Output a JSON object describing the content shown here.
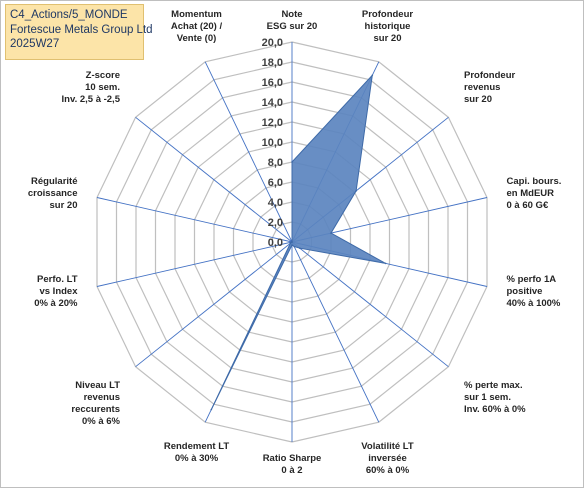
{
  "header": {
    "line1": "C4_Actions/5_MONDE",
    "line2": "Fortescue Metals Group Ltd",
    "line3": "2025W27"
  },
  "chart_data": {
    "type": "radar",
    "rmin": 0,
    "rmax": 20,
    "tick_step": 2,
    "ticks": [
      "0,0",
      "2,0",
      "4,0",
      "6,0",
      "8,0",
      "10,0",
      "12,0",
      "14,0",
      "16,0",
      "18,0",
      "20,0"
    ],
    "grid": true,
    "axis_labels": [
      [
        "Note",
        "ESG sur 20"
      ],
      [
        "Profondeur",
        "historique",
        "sur 20"
      ],
      [
        "Profondeur",
        "revenus",
        "sur 20"
      ],
      [
        "Capi. bours.",
        "en MdEUR",
        "0 à 60 G€"
      ],
      [
        "% perfo 1A",
        "positive",
        "40% à 100%"
      ],
      [
        "% perte max.",
        "sur 1 sem.",
        "Inv. 60% à 0%"
      ],
      [
        "Volatilité LT",
        "inversée",
        "60% à 0%"
      ],
      [
        "Ratio Sharpe",
        "0 à 2"
      ],
      [
        "Rendement LT",
        "0% à 30%"
      ],
      [
        "Niveau LT",
        "revenus",
        "reccurents",
        "0% à 6%"
      ],
      [
        "Perfo. LT",
        "vs Index",
        "0% à 20%"
      ],
      [
        "Régularité",
        "croissance",
        "sur 20"
      ],
      [
        "Z-score",
        "10 sem.",
        "Inv. 2,5 à -2,5"
      ],
      [
        "Momentum",
        "Achat (20) /",
        "Vente (0)"
      ]
    ],
    "series": [
      {
        "values": [
          8.0,
          18.5,
          8.2,
          4.0,
          9.6,
          1.0,
          0.5,
          0.3,
          18.6,
          0.2,
          0.1,
          0.0,
          0.0,
          0.0
        ]
      }
    ],
    "colors": {
      "fill": "#5b84bf",
      "stroke": "#3e6aa8",
      "grid": "#bfbfbf",
      "spoke": "#4472c4"
    }
  }
}
